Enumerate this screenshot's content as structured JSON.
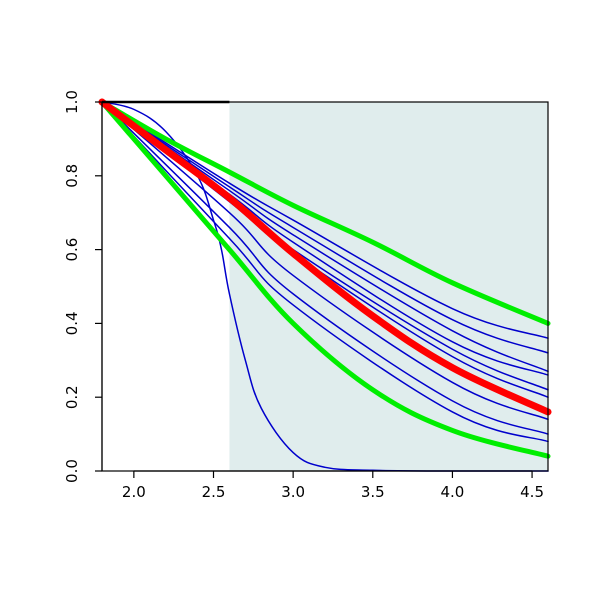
{
  "chart_data": {
    "type": "line",
    "title": "",
    "xlabel": "",
    "ylabel": "",
    "xlim": [
      1.8,
      4.6
    ],
    "ylim": [
      0.0,
      1.0
    ],
    "grid": false,
    "x_ticks": [
      2.0,
      2.5,
      3.0,
      3.5,
      4.0,
      4.5
    ],
    "x_tick_labels": [
      "2.0",
      "2.5",
      "3.0",
      "3.5",
      "4.0",
      "4.5"
    ],
    "y_ticks": [
      0.0,
      0.2,
      0.4,
      0.6,
      0.8,
      1.0
    ],
    "y_tick_labels": [
      "0.0",
      "0.2",
      "0.4",
      "0.6",
      "0.8",
      "1.0"
    ],
    "shaded_region": {
      "x_start": 2.6,
      "x_end": 4.6,
      "color": "#e0eded"
    },
    "colors": {
      "blue": "#0000cc",
      "red": "#ff0000",
      "green": "#00ee00"
    },
    "series": [
      {
        "kind": "steep",
        "color": "#0000cc",
        "x": [
          1.8,
          2.0,
          2.2,
          2.4,
          2.5,
          2.55,
          2.6,
          2.7,
          2.8,
          3.0,
          3.2,
          3.5,
          4.0,
          4.6
        ],
        "y": [
          1.0,
          0.98,
          0.92,
          0.8,
          0.68,
          0.6,
          0.48,
          0.3,
          0.17,
          0.05,
          0.01,
          0.002,
          0.0,
          0.0
        ]
      },
      {
        "color": "#0000cc",
        "x": [
          1.8,
          2.6,
          3.0,
          4.0,
          4.6
        ],
        "y": [
          1.0,
          0.78,
          0.68,
          0.44,
          0.36
        ]
      },
      {
        "color": "#0000cc",
        "x": [
          1.8,
          2.6,
          3.0,
          4.0,
          4.6
        ],
        "y": [
          1.0,
          0.77,
          0.66,
          0.41,
          0.32
        ]
      },
      {
        "color": "#0000cc",
        "x": [
          1.8,
          2.6,
          3.0,
          4.0,
          4.6
        ],
        "y": [
          1.0,
          0.76,
          0.64,
          0.38,
          0.27
        ]
      },
      {
        "color": "#0000cc",
        "x": [
          1.8,
          2.6,
          3.0,
          4.0,
          4.6
        ],
        "y": [
          1.0,
          0.75,
          0.62,
          0.35,
          0.26
        ]
      },
      {
        "color": "#0000cc",
        "x": [
          1.8,
          2.6,
          3.0,
          4.0,
          4.6
        ],
        "y": [
          1.0,
          0.74,
          0.6,
          0.33,
          0.22
        ]
      },
      {
        "color": "#0000cc",
        "x": [
          1.8,
          2.6,
          3.0,
          4.0,
          4.6
        ],
        "y": [
          1.0,
          0.73,
          0.59,
          0.31,
          0.2
        ]
      },
      {
        "color": "#0000cc",
        "x": [
          1.8,
          2.6,
          3.0,
          4.0,
          4.6
        ],
        "y": [
          1.0,
          0.7,
          0.53,
          0.24,
          0.14
        ]
      },
      {
        "color": "#0000cc",
        "x": [
          1.8,
          2.6,
          3.0,
          4.0,
          4.6
        ],
        "y": [
          1.0,
          0.66,
          0.48,
          0.19,
          0.1
        ]
      },
      {
        "color": "#0000cc",
        "x": [
          1.8,
          2.6,
          3.0,
          4.0,
          4.6
        ],
        "y": [
          1.0,
          0.63,
          0.45,
          0.16,
          0.08
        ]
      },
      {
        "color": "#00ee00",
        "width": 5,
        "x": [
          1.8,
          2.2,
          2.6,
          3.0,
          3.5,
          4.0,
          4.6
        ],
        "y": [
          1.0,
          0.9,
          0.81,
          0.72,
          0.62,
          0.51,
          0.4
        ]
      },
      {
        "color": "#00ee00",
        "width": 5,
        "x": [
          1.8,
          2.2,
          2.6,
          3.0,
          3.5,
          4.0,
          4.6
        ],
        "y": [
          1.0,
          0.8,
          0.6,
          0.4,
          0.22,
          0.11,
          0.04
        ]
      },
      {
        "color": "#ff0000",
        "width": 7,
        "x": [
          1.8,
          2.2,
          2.6,
          3.0,
          3.5,
          4.0,
          4.6
        ],
        "y": [
          1.0,
          0.87,
          0.74,
          0.59,
          0.42,
          0.28,
          0.16
        ]
      }
    ]
  }
}
